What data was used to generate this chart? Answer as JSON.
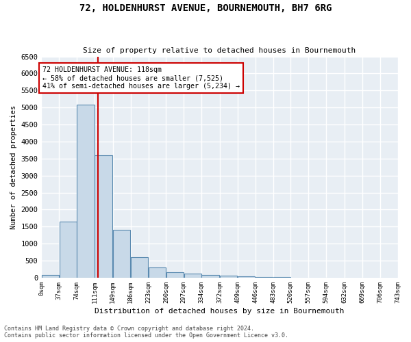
{
  "title": "72, HOLDENHURST AVENUE, BOURNEMOUTH, BH7 6RG",
  "subtitle": "Size of property relative to detached houses in Bournemouth",
  "xlabel": "Distribution of detached houses by size in Bournemouth",
  "ylabel": "Number of detached properties",
  "bar_color": "#c8d9e8",
  "bar_edge_color": "#5a8ab0",
  "background_color": "#e8eef4",
  "grid_color": "white",
  "bin_labels": [
    "0sqm",
    "37sqm",
    "74sqm",
    "111sqm",
    "149sqm",
    "186sqm",
    "223sqm",
    "260sqm",
    "297sqm",
    "334sqm",
    "372sqm",
    "409sqm",
    "446sqm",
    "483sqm",
    "520sqm",
    "557sqm",
    "594sqm",
    "632sqm",
    "669sqm",
    "706sqm",
    "743sqm"
  ],
  "bar_values": [
    75,
    1650,
    5075,
    3600,
    1400,
    600,
    300,
    150,
    120,
    85,
    50,
    30,
    15,
    10,
    5,
    0,
    0,
    0,
    0,
    0
  ],
  "bin_edges": [
    0,
    37,
    74,
    111,
    149,
    186,
    223,
    260,
    297,
    334,
    372,
    409,
    446,
    483,
    520,
    557,
    594,
    632,
    669,
    706,
    743
  ],
  "property_size": 118,
  "vline_color": "#cc0000",
  "annotation_text": "72 HOLDENHURST AVENUE: 118sqm\n← 58% of detached houses are smaller (7,525)\n41% of semi-detached houses are larger (5,234) →",
  "annotation_box_color": "#cc0000",
  "ylim": [
    0,
    6500
  ],
  "yticks": [
    0,
    500,
    1000,
    1500,
    2000,
    2500,
    3000,
    3500,
    4000,
    4500,
    5000,
    5500,
    6000,
    6500
  ],
  "footnote1": "Contains HM Land Registry data © Crown copyright and database right 2024.",
  "footnote2": "Contains public sector information licensed under the Open Government Licence v3.0."
}
